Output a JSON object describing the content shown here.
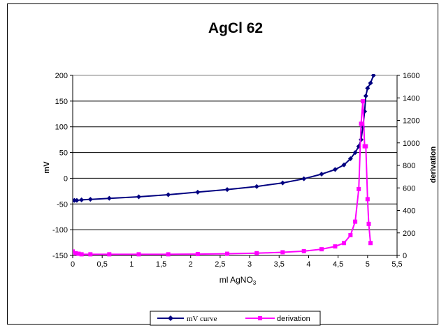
{
  "chart_data": {
    "type": "line",
    "title": "AgCl 62",
    "xlabel": "ml AgNO",
    "xlabel_sub": "3",
    "ylabel_left": "mV",
    "ylabel_right": "derivation",
    "xlim": [
      0,
      5.5
    ],
    "ylim_left": [
      -150,
      200
    ],
    "ylim_right": [
      0,
      1600
    ],
    "x_ticks": [
      "0",
      "0,5",
      "1",
      "1,5",
      "2",
      "2,5",
      "3",
      "3,5",
      "4",
      "4,5",
      "5",
      "5,5"
    ],
    "y_left_ticks": [
      "-150",
      "-100",
      "-50",
      "0",
      "50",
      "100",
      "150",
      "200"
    ],
    "y_right_ticks": [
      "0",
      "200",
      "400",
      "600",
      "800",
      "1000",
      "1200",
      "1400",
      "1600"
    ],
    "grid": "horizontal",
    "legend_position": "bottom",
    "series": [
      {
        "name": "mV curve",
        "axis": "left",
        "color": "#000080",
        "marker": "diamond",
        "x": [
          0,
          0.03,
          0.07,
          0.15,
          0.3,
          0.62,
          1.12,
          1.62,
          2.12,
          2.62,
          3.12,
          3.56,
          3.92,
          4.22,
          4.45,
          4.6,
          4.71,
          4.79,
          4.85,
          4.89,
          4.92,
          4.95,
          4.97,
          5.0,
          5.05,
          5.1
        ],
        "y": [
          -43,
          -43,
          -43,
          -42,
          -41,
          -39,
          -36,
          -32,
          -27,
          -22,
          -16,
          -9,
          -1,
          8,
          17,
          26,
          38,
          50,
          62,
          75,
          100,
          130,
          160,
          175,
          185,
          200
        ]
      },
      {
        "name": "derivation",
        "axis": "right",
        "color": "#ff00ff",
        "marker": "square",
        "x": [
          0,
          0.05,
          0.1,
          0.15,
          0.3,
          0.62,
          1.12,
          1.62,
          2.12,
          2.62,
          3.12,
          3.56,
          3.92,
          4.22,
          4.45,
          4.6,
          4.71,
          4.79,
          4.85,
          4.89,
          4.92,
          4.95,
          4.97,
          5.0,
          5.02,
          5.05
        ],
        "y": [
          35,
          20,
          15,
          10,
          10,
          10,
          10,
          10,
          12,
          15,
          20,
          28,
          38,
          55,
          80,
          110,
          180,
          300,
          590,
          1170,
          1370,
          970,
          970,
          500,
          280,
          110
        ]
      }
    ]
  }
}
